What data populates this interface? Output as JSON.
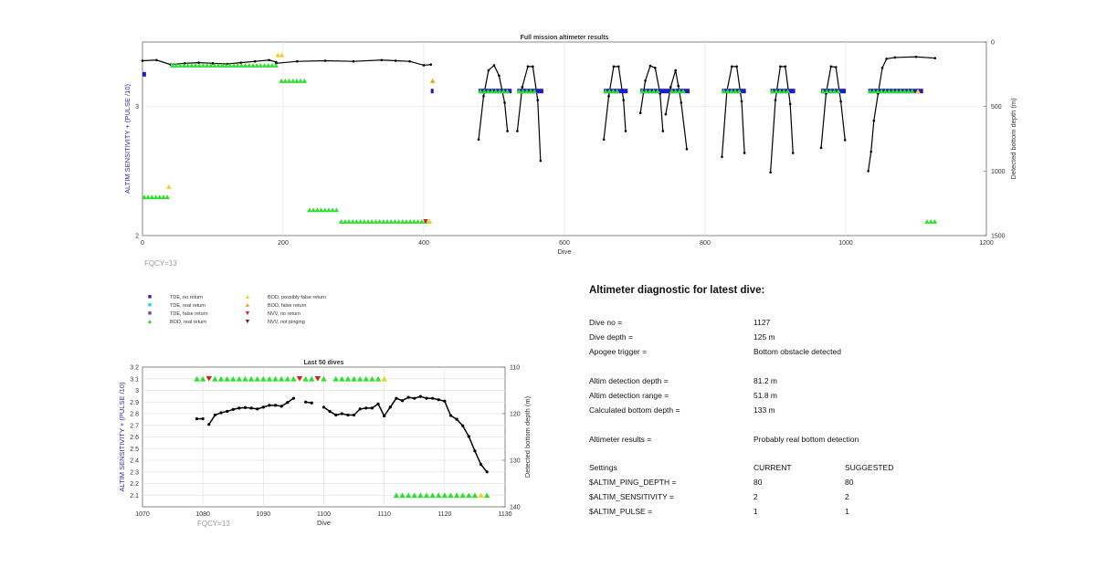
{
  "chart_data": [
    {
      "type": "scatter",
      "title": "Full mission altimeter results",
      "xlabel": "Dive",
      "ylabel": "ALTIM SENSITIVITY + (PULSE /10)",
      "y2label": "Detected bottom depth (m)",
      "xlim": [
        0,
        1200
      ],
      "ylim": [
        2,
        3.5
      ],
      "y2lim": [
        1500,
        0
      ],
      "x_ticks": [
        "0",
        "200",
        "400",
        "600",
        "800",
        "1000",
        "1200"
      ],
      "y_ticks": [
        "2",
        "3"
      ],
      "y2_ticks": [
        "0",
        "500",
        "1000",
        "1500"
      ],
      "grid": true,
      "annotation": "FQCY=13",
      "depth_segments": [
        {
          "x": [
            0,
            20,
            40,
            60,
            80,
            100,
            120,
            140,
            160,
            180,
            190
          ],
          "depth": [
            145,
            140,
            175,
            165,
            160,
            165,
            170,
            160,
            150,
            140,
            155
          ]
        },
        {
          "x": [
            190,
            220,
            260,
            300,
            340,
            360,
            380,
            400,
            410
          ],
          "depth": [
            165,
            150,
            145,
            150,
            140,
            145,
            150,
            180,
            175
          ]
        },
        {
          "x": [
            478,
            485,
            492,
            500,
            507,
            515,
            519
          ],
          "depth": [
            755,
            420,
            220,
            180,
            260,
            470,
            690
          ]
        },
        {
          "x": [
            533,
            540,
            548,
            555,
            562,
            566
          ],
          "depth": [
            690,
            350,
            190,
            190,
            450,
            920
          ]
        },
        {
          "x": [
            656,
            663,
            670,
            677,
            684,
            687
          ],
          "depth": [
            755,
            420,
            190,
            190,
            450,
            690
          ]
        },
        {
          "x": [
            708,
            715,
            722,
            729,
            736,
            740
          ],
          "depth": [
            550,
            300,
            185,
            200,
            400,
            690
          ]
        },
        {
          "x": [
            744,
            751,
            758,
            762,
            766,
            774
          ],
          "depth": [
            560,
            350,
            220,
            340,
            470,
            830
          ]
        },
        {
          "x": [
            824,
            831,
            838,
            845,
            852,
            856
          ],
          "depth": [
            890,
            380,
            190,
            190,
            460,
            860
          ]
        },
        {
          "x": [
            893,
            900,
            907,
            914,
            921,
            925
          ],
          "depth": [
            1010,
            450,
            190,
            190,
            480,
            860
          ]
        },
        {
          "x": [
            965,
            972,
            979,
            986,
            993,
            999
          ],
          "depth": [
            820,
            400,
            190,
            195,
            460,
            760
          ]
        },
        {
          "x": [
            1032,
            1036,
            1040,
            1046,
            1052,
            1058,
            1070,
            1100,
            1127
          ],
          "depth": [
            1000,
            850,
            610,
            400,
            200,
            130,
            120,
            115,
            125
          ]
        }
      ],
      "markers": [
        {
          "legend": "TDE, no return",
          "color": "#1c1cc8",
          "shape": "square",
          "segments": [
            [
              0,
              5,
              3.25
            ],
            [
              410,
              412,
              3.12
            ],
            [
              478,
              525,
              3.12
            ],
            [
              533,
              570,
              3.12
            ],
            [
              656,
              690,
              3.12
            ],
            [
              708,
              745,
              3.12
            ],
            [
              744,
              778,
              3.12
            ],
            [
              824,
              858,
              3.12
            ],
            [
              893,
              928,
              3.12
            ],
            [
              965,
              1000,
              3.12
            ],
            [
              1032,
              1110,
              3.12
            ]
          ]
        },
        {
          "legend": "TDE, real return",
          "color": "#2ad4e6",
          "shape": "square",
          "segments": [
            [
              40,
              45,
              3.32
            ]
          ]
        },
        {
          "legend": "BOD, real return",
          "color": "#2ee02e",
          "shape": "triangle-up",
          "segments": [
            [
              0,
              40,
              2.3
            ],
            [
              40,
              190,
              3.32
            ],
            [
              195,
              235,
              3.2
            ],
            [
              235,
              280,
              2.2
            ],
            [
              280,
              410,
              2.11
            ],
            [
              478,
              520,
              3.12
            ],
            [
              533,
              560,
              3.12
            ],
            [
              656,
              680,
              3.12
            ],
            [
              708,
              735,
              3.12
            ],
            [
              750,
              770,
              3.12
            ],
            [
              824,
              850,
              3.12
            ],
            [
              893,
              920,
              3.12
            ],
            [
              965,
              990,
              3.12
            ],
            [
              1032,
              1100,
              3.12
            ],
            [
              1113,
              1130,
              2.11
            ]
          ]
        },
        {
          "legend": "BOD, possibly false return",
          "color": "#f5cf1b",
          "shape": "triangle-up",
          "segments": [
            [
              35,
              40,
              2.38
            ],
            [
              190,
              200,
              3.4
            ],
            [
              405,
              410,
              2.11
            ],
            [
              1100,
              1105,
              3.12
            ]
          ]
        },
        {
          "legend": "BOD, false return",
          "color": "#f0a020",
          "shape": "triangle-up",
          "segments": [
            [
              410,
              413,
              3.2
            ]
          ]
        },
        {
          "legend": "NVV, no return",
          "color": "#d02020",
          "shape": "triangle-down",
          "segments": [
            [
              400,
              404,
              2.11
            ]
          ]
        }
      ]
    },
    {
      "type": "line",
      "title": "Last 50 dives",
      "xlabel": "Dive",
      "ylabel": "ALTIM SENSITIVITY + (PULSE /10)",
      "y2label": "Detected bottom depth (m)",
      "xlim": [
        1070,
        1130
      ],
      "ylim": [
        2.0,
        3.2
      ],
      "y2lim": [
        140,
        110
      ],
      "x_ticks": [
        "1070",
        "1080",
        "1090",
        "1100",
        "1110",
        "1120",
        "1130"
      ],
      "y_ticks": [
        "2.1",
        "2.2",
        "2.3",
        "2.4",
        "2.5",
        "2.6",
        "2.7",
        "2.8",
        "2.9",
        "3",
        "3.1",
        "3.2"
      ],
      "y2_ticks": [
        "110",
        "120",
        "130",
        "140"
      ],
      "grid": true,
      "annotation": "FQCY=13",
      "depth_segments": [
        {
          "x": [
            1079,
            1080
          ],
          "depth": [
            121.1,
            121.1
          ]
        },
        {
          "x": [
            1081,
            1082,
            1083,
            1084,
            1085,
            1086,
            1087,
            1088,
            1089,
            1090,
            1091,
            1092,
            1093,
            1094,
            1095
          ],
          "depth": [
            122.3,
            120.3,
            119.8,
            119.5,
            119.1,
            118.8,
            118.7,
            118.8,
            119.0,
            118.6,
            118.2,
            118.2,
            118.4,
            117.6,
            116.7
          ]
        },
        {
          "x": [
            1097,
            1098
          ],
          "depth": [
            117.5,
            117.7
          ]
        },
        {
          "x": [
            1100,
            1101,
            1102,
            1103,
            1104,
            1105,
            1106,
            1107,
            1108,
            1109,
            1110,
            1111,
            1112,
            1113,
            1114,
            1115,
            1116,
            1117,
            1118,
            1119,
            1120,
            1121,
            1122,
            1123,
            1124,
            1125,
            1126,
            1127
          ],
          "depth": [
            118.6,
            119.5,
            120.3,
            120.0,
            120.3,
            120.3,
            119.0,
            118.8,
            118.8,
            117.9,
            120.5,
            118.6,
            116.7,
            117.2,
            116.5,
            116.7,
            116.3,
            116.7,
            116.7,
            117.0,
            117.3,
            120.4,
            121.2,
            122.6,
            124.9,
            128.0,
            130.9,
            132.5
          ]
        }
      ],
      "markers": [
        {
          "legend": "BOD, real return",
          "color": "#2ee02e",
          "shape": "triangle-up",
          "y": 3.1,
          "x": [
            1079,
            1080,
            1082,
            1083,
            1084,
            1085,
            1086,
            1087,
            1088,
            1089,
            1090,
            1091,
            1092,
            1093,
            1094,
            1095,
            1097,
            1098,
            1100,
            1102,
            1103,
            1104,
            1105,
            1106,
            1107,
            1108,
            1109
          ]
        },
        {
          "legend": "NVV, no return",
          "color": "#d02020",
          "shape": "triangle-down",
          "y": 3.1,
          "x": [
            1081,
            1096,
            1099
          ]
        },
        {
          "legend": "BOD, possibly false return",
          "color": "#f5cf1b",
          "shape": "triangle-up",
          "y": 3.1,
          "x": [
            1110
          ]
        },
        {
          "legend": "BOD, real return",
          "color": "#2ee02e",
          "shape": "triangle-up",
          "y": 2.1,
          "x": [
            1112,
            1113,
            1114,
            1115,
            1116,
            1117,
            1118,
            1119,
            1120,
            1121,
            1122,
            1123,
            1124,
            1125,
            1127
          ]
        },
        {
          "legend": "BOD, possibly false return",
          "color": "#f5cf1b",
          "shape": "triangle-up",
          "y": 2.1,
          "x": [
            1126
          ]
        }
      ]
    }
  ],
  "legend": [
    {
      "label": "TDE, no return",
      "color": "#1c1cc8",
      "symbol": "■"
    },
    {
      "label": "TDE, real return",
      "color": "#2ad4e6",
      "symbol": "■"
    },
    {
      "label": "TDE, false return",
      "color": "#7040c0",
      "symbol": "■"
    },
    {
      "label": "BOD, real return",
      "color": "#2ee02e",
      "symbol": "▲"
    },
    {
      "label": "BOD, possibly false return",
      "color": "#f5cf1b",
      "symbol": "▲"
    },
    {
      "label": "BOD, false return",
      "color": "#f0a020",
      "symbol": "▲"
    },
    {
      "label": "NVV, no return",
      "color": "#d02020",
      "symbol": "▼"
    },
    {
      "label": "NVV, not pinging",
      "color": "#7a1010",
      "symbol": "▼"
    }
  ],
  "diagnostic": {
    "title": "Altimeter diagnostic for latest dive:",
    "dive_no_label": "Dive no =",
    "dive_no": "1127",
    "dive_depth_label": "Dive depth =",
    "dive_depth": "125 m",
    "apogee_label": "Apogee trigger =",
    "apogee": "Bottom obstacle detected",
    "det_depth_label": "Altim detection depth =",
    "det_depth": "81.2 m",
    "det_range_label": "Altim detection range =",
    "det_range": "51.8 m",
    "calc_depth_label": "Calculated bottom depth =",
    "calc_depth": "133 m",
    "results_label": "Altimeter results =",
    "results": "Probably real bottom detection",
    "settings_label": "Settings",
    "current_label": "CURRENT",
    "suggested_label": "SUGGESTED",
    "ping_depth_label": "$ALTIM_PING_DEPTH =",
    "ping_depth_current": "80",
    "ping_depth_suggested": "80",
    "sensitivity_label": "$ALTIM_SENSITIVITY =",
    "sensitivity_current": "2",
    "sensitivity_suggested": "2",
    "pulse_label": "$ALTIM_PULSE =",
    "pulse_current": "1",
    "pulse_suggested": "1"
  }
}
